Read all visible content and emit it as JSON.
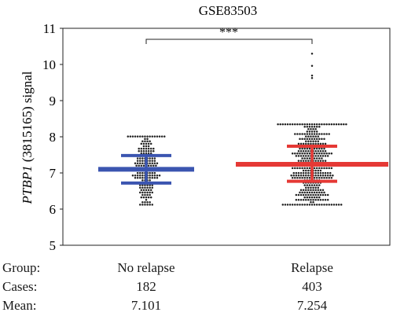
{
  "chart_data": {
    "type": "scatter",
    "title": "GSE83503",
    "ylabel_italic": "PTBP1",
    "ylabel_rest": " (3815165) signal",
    "ylim": [
      5,
      11
    ],
    "yticks": [
      5,
      6,
      7,
      8,
      9,
      10,
      11
    ],
    "grid": false,
    "categories": [
      "No relapse",
      "Relapse"
    ],
    "groups": [
      {
        "name": "No relapse",
        "n": 182,
        "mean": 7.101,
        "median": 7.1,
        "q1": 6.72,
        "q3": 7.48,
        "min": 6.13,
        "max": 8.02,
        "color": "#3b55b0"
      },
      {
        "name": "Relapse",
        "n": 403,
        "mean": 7.254,
        "median": 7.24,
        "q1": 6.77,
        "q3": 7.74,
        "min": 6.15,
        "max": 8.35,
        "outliers": [
          10.3,
          9.95,
          9.7,
          9.6
        ],
        "color": "#e53935"
      }
    ],
    "significance": "***",
    "point_color": "#222222"
  },
  "table": {
    "group_label": "Group:",
    "cases_label": "Cases:",
    "mean_label": "Mean:",
    "groups": [
      "No relapse",
      "Relapse"
    ],
    "cases": [
      "182",
      "403"
    ],
    "means": [
      "7.101",
      "7.254"
    ]
  }
}
